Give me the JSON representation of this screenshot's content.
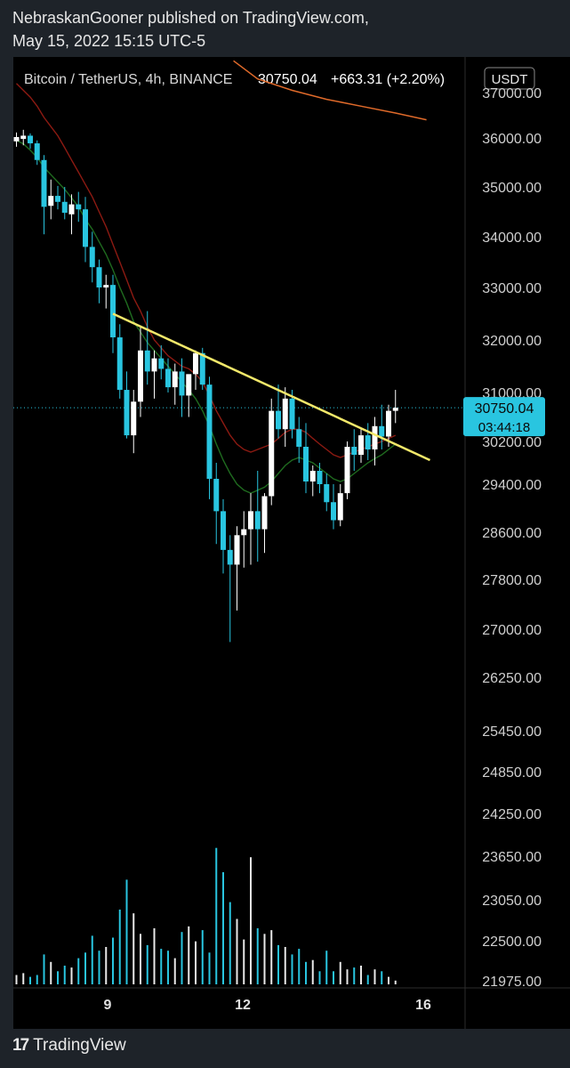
{
  "header": {
    "publisher_line": "NebraskanGooner published on TradingView.com,",
    "date_line": "May 15, 2022 15:15 UTC-5"
  },
  "legend": {
    "symbol": "Bitcoin / TetherUS, 4h, BINANCE",
    "price": "30750.04",
    "change": "+663.31 (+2.20%)"
  },
  "currency_button": "USDT",
  "last_price_tag": {
    "price": "30750.04",
    "countdown": "03:44:18"
  },
  "footer": {
    "brand": "TradingView",
    "logo_mark": "17"
  },
  "colors": {
    "up": "#ffffff",
    "down": "#29c5e0",
    "trendline": "#f2e86a",
    "ema_green": "#1f6b1f",
    "ema_red": "#8c1a12",
    "ema_orange": "#e06a2a",
    "price_tag": "#29c5e0"
  },
  "chart_data": {
    "type": "candlestick",
    "title": "Bitcoin / TetherUS, 4h, BINANCE",
    "y_ticks": [
      "37000.00",
      "36000.00",
      "35000.00",
      "34000.00",
      "33000.00",
      "32000.00",
      "31000.00",
      "30200.00",
      "29400.00",
      "28600.00",
      "27800.00",
      "27000.00",
      "26250.00",
      "25450.00",
      "24850.00",
      "24250.00",
      "23650.00",
      "23050.00",
      "22500.00",
      "21975.00"
    ],
    "x_ticks": [
      "9",
      "12",
      "16"
    ],
    "last_price": 30750.04,
    "candles": [
      {
        "o": 35930,
        "h": 36120,
        "l": 35820,
        "c": 36020
      },
      {
        "o": 35980,
        "h": 36180,
        "l": 35850,
        "c": 36050
      },
      {
        "o": 36050,
        "h": 36100,
        "l": 35780,
        "c": 35890
      },
      {
        "o": 35890,
        "h": 35950,
        "l": 35450,
        "c": 35550
      },
      {
        "o": 35550,
        "h": 35650,
        "l": 34050,
        "c": 34600
      },
      {
        "o": 34620,
        "h": 35150,
        "l": 34350,
        "c": 34820
      },
      {
        "o": 34820,
        "h": 35020,
        "l": 34550,
        "c": 34700
      },
      {
        "o": 34700,
        "h": 35000,
        "l": 34350,
        "c": 34480
      },
      {
        "o": 34450,
        "h": 34850,
        "l": 34050,
        "c": 34650
      },
      {
        "o": 34650,
        "h": 34900,
        "l": 34300,
        "c": 34550
      },
      {
        "o": 34550,
        "h": 34800,
        "l": 33500,
        "c": 33800
      },
      {
        "o": 33800,
        "h": 34100,
        "l": 33100,
        "c": 33400
      },
      {
        "o": 33400,
        "h": 33550,
        "l": 32700,
        "c": 33000
      },
      {
        "o": 33000,
        "h": 33250,
        "l": 32600,
        "c": 33050
      },
      {
        "o": 33050,
        "h": 33250,
        "l": 31750,
        "c": 32050
      },
      {
        "o": 32050,
        "h": 32300,
        "l": 30900,
        "c": 31050
      },
      {
        "o": 31050,
        "h": 31400,
        "l": 30250,
        "c": 30300
      },
      {
        "o": 30300,
        "h": 31050,
        "l": 29980,
        "c": 30850
      },
      {
        "o": 30850,
        "h": 32250,
        "l": 30600,
        "c": 31800
      },
      {
        "o": 31800,
        "h": 32550,
        "l": 31150,
        "c": 31400
      },
      {
        "o": 31400,
        "h": 31800,
        "l": 30900,
        "c": 31650
      },
      {
        "o": 31650,
        "h": 31900,
        "l": 31250,
        "c": 31450
      },
      {
        "o": 31450,
        "h": 31650,
        "l": 31000,
        "c": 31100
      },
      {
        "o": 31100,
        "h": 31550,
        "l": 30800,
        "c": 31400
      },
      {
        "o": 31400,
        "h": 31650,
        "l": 30600,
        "c": 30950
      },
      {
        "o": 30950,
        "h": 31300,
        "l": 30600,
        "c": 31350
      },
      {
        "o": 31350,
        "h": 31800,
        "l": 31050,
        "c": 31750
      },
      {
        "o": 31750,
        "h": 31850,
        "l": 31050,
        "c": 31150
      },
      {
        "o": 31150,
        "h": 31300,
        "l": 29150,
        "c": 29500
      },
      {
        "o": 29500,
        "h": 29800,
        "l": 28400,
        "c": 28950
      },
      {
        "o": 28950,
        "h": 29150,
        "l": 27900,
        "c": 28300
      },
      {
        "o": 28300,
        "h": 28550,
        "l": 26800,
        "c": 28050
      },
      {
        "o": 28050,
        "h": 28700,
        "l": 27300,
        "c": 28550
      },
      {
        "o": 28550,
        "h": 28950,
        "l": 28000,
        "c": 28650
      },
      {
        "o": 28650,
        "h": 29250,
        "l": 28050,
        "c": 28950
      },
      {
        "o": 28950,
        "h": 29650,
        "l": 28100,
        "c": 28650
      },
      {
        "o": 28650,
        "h": 29250,
        "l": 28250,
        "c": 29200
      },
      {
        "o": 29200,
        "h": 30900,
        "l": 29050,
        "c": 30700
      },
      {
        "o": 30700,
        "h": 31150,
        "l": 30250,
        "c": 30400
      },
      {
        "o": 30400,
        "h": 31100,
        "l": 30100,
        "c": 30900
      },
      {
        "o": 30900,
        "h": 31050,
        "l": 30250,
        "c": 30400
      },
      {
        "o": 30400,
        "h": 30600,
        "l": 29800,
        "c": 30100
      },
      {
        "o": 30100,
        "h": 30500,
        "l": 29250,
        "c": 29450
      },
      {
        "o": 29450,
        "h": 29750,
        "l": 29200,
        "c": 29650
      },
      {
        "o": 29650,
        "h": 29800,
        "l": 29250,
        "c": 29400
      },
      {
        "o": 29400,
        "h": 29600,
        "l": 28950,
        "c": 29100
      },
      {
        "o": 29100,
        "h": 29400,
        "l": 28650,
        "c": 28800
      },
      {
        "o": 28800,
        "h": 29400,
        "l": 28700,
        "c": 29250
      },
      {
        "o": 29250,
        "h": 30200,
        "l": 29150,
        "c": 30100
      },
      {
        "o": 30100,
        "h": 30400,
        "l": 29650,
        "c": 29950
      },
      {
        "o": 29950,
        "h": 30400,
        "l": 29800,
        "c": 30300
      },
      {
        "o": 30300,
        "h": 30500,
        "l": 29850,
        "c": 30050
      },
      {
        "o": 30050,
        "h": 30600,
        "l": 29750,
        "c": 30450
      },
      {
        "o": 30450,
        "h": 30800,
        "l": 30050,
        "c": 30280
      },
      {
        "o": 30280,
        "h": 30800,
        "l": 30100,
        "c": 30700
      },
      {
        "o": 30700,
        "h": 31050,
        "l": 30500,
        "c": 30750
      }
    ],
    "volumes": [
      0.05,
      0.06,
      0.04,
      0.05,
      0.16,
      0.12,
      0.07,
      0.1,
      0.09,
      0.14,
      0.17,
      0.26,
      0.18,
      0.2,
      0.25,
      0.4,
      0.56,
      0.38,
      0.27,
      0.21,
      0.3,
      0.19,
      0.18,
      0.14,
      0.28,
      0.31,
      0.23,
      0.29,
      0.17,
      0.73,
      0.6,
      0.44,
      0.35,
      0.24,
      0.68,
      0.3,
      0.27,
      0.29,
      0.21,
      0.2,
      0.16,
      0.19,
      0.12,
      0.13,
      0.07,
      0.18,
      0.07,
      0.12,
      0.08,
      0.09,
      0.1,
      0.05,
      0.08,
      0.07,
      0.04,
      0.02
    ],
    "ema_green": [
      35950,
      35880,
      35750,
      35600,
      35400,
      35250,
      35100,
      34950,
      34780,
      34600,
      34350,
      34150,
      33900,
      33650,
      33350,
      33000,
      32700,
      32350,
      32150,
      31950,
      31800,
      31650,
      31500,
      31350,
      31200,
      31050,
      30900,
      30700,
      30450,
      30150,
      29850,
      29600,
      29400,
      29300,
      29250,
      29300,
      29350,
      29450,
      29600,
      29750,
      29850,
      29900,
      29850,
      29800,
      29700,
      29600,
      29500,
      29450,
      29500,
      29600,
      29700,
      29800,
      29880,
      29950,
      30050,
      30150
    ],
    "ema_red": [
      37200,
      37050,
      36900,
      36700,
      36450,
      36250,
      36050,
      35800,
      35550,
      35300,
      35050,
      34800,
      34500,
      34200,
      33850,
      33500,
      33150,
      32800,
      32550,
      32250,
      32000,
      31850,
      31700,
      31600,
      31500,
      31450,
      31350,
      31200,
      30950,
      30700,
      30500,
      30300,
      30150,
      30050,
      30000,
      30050,
      30100,
      30150,
      30250,
      30350,
      30400,
      30400,
      30350,
      30250,
      30150,
      30050,
      29950,
      29900,
      29950,
      30000,
      30050,
      30100,
      30150,
      30200,
      30250,
      30300
    ],
    "ema_orange_pts": [
      [
        31.5,
        37700
      ],
      [
        35,
        37300
      ],
      [
        40,
        37050
      ],
      [
        45,
        36850
      ],
      [
        50,
        36700
      ],
      [
        55,
        36550
      ],
      [
        59.5,
        36400
      ]
    ],
    "trendline": {
      "from": [
        14,
        32500
      ],
      "to": [
        60,
        29850
      ]
    },
    "xlabel": "",
    "ylabel": ""
  }
}
